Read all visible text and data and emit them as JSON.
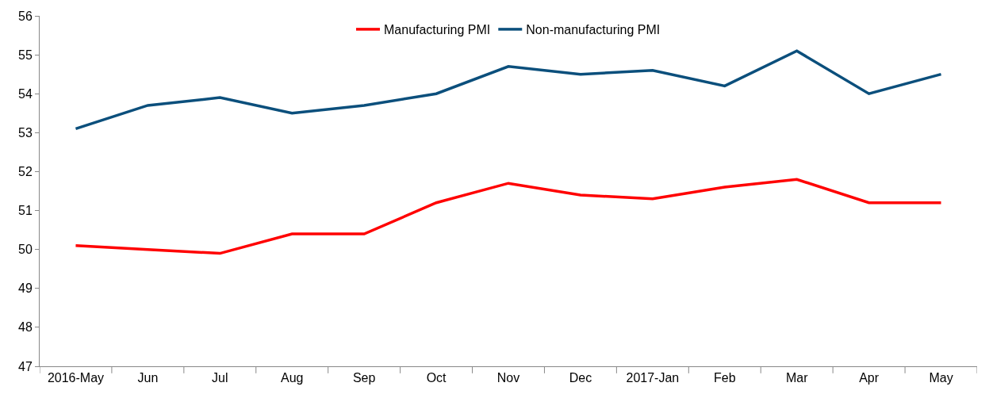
{
  "chart_data": {
    "type": "line",
    "categories": [
      "2016-May",
      "Jun",
      "Jul",
      "Aug",
      "Sep",
      "Oct",
      "Nov",
      "Dec",
      "2017-Jan",
      "Feb",
      "Mar",
      "Apr",
      "May"
    ],
    "series": [
      {
        "name": "Manufacturing PMI",
        "color": "#ff0000",
        "values": [
          50.1,
          50.0,
          49.9,
          50.4,
          50.4,
          51.2,
          51.7,
          51.4,
          51.3,
          51.6,
          51.8,
          51.2,
          51.2
        ]
      },
      {
        "name": "Non-manufacturing PMI",
        "color": "#0b4f7c",
        "values": [
          53.1,
          53.7,
          53.9,
          53.5,
          53.7,
          54.0,
          54.7,
          54.5,
          54.6,
          54.2,
          55.1,
          54.0,
          54.5
        ]
      }
    ],
    "ylim": [
      47,
      56
    ],
    "yticks": [
      47,
      48,
      49,
      50,
      51,
      52,
      53,
      54,
      55,
      56
    ],
    "grid": false,
    "legend": "top",
    "marker": "none",
    "line_style": "solid"
  }
}
